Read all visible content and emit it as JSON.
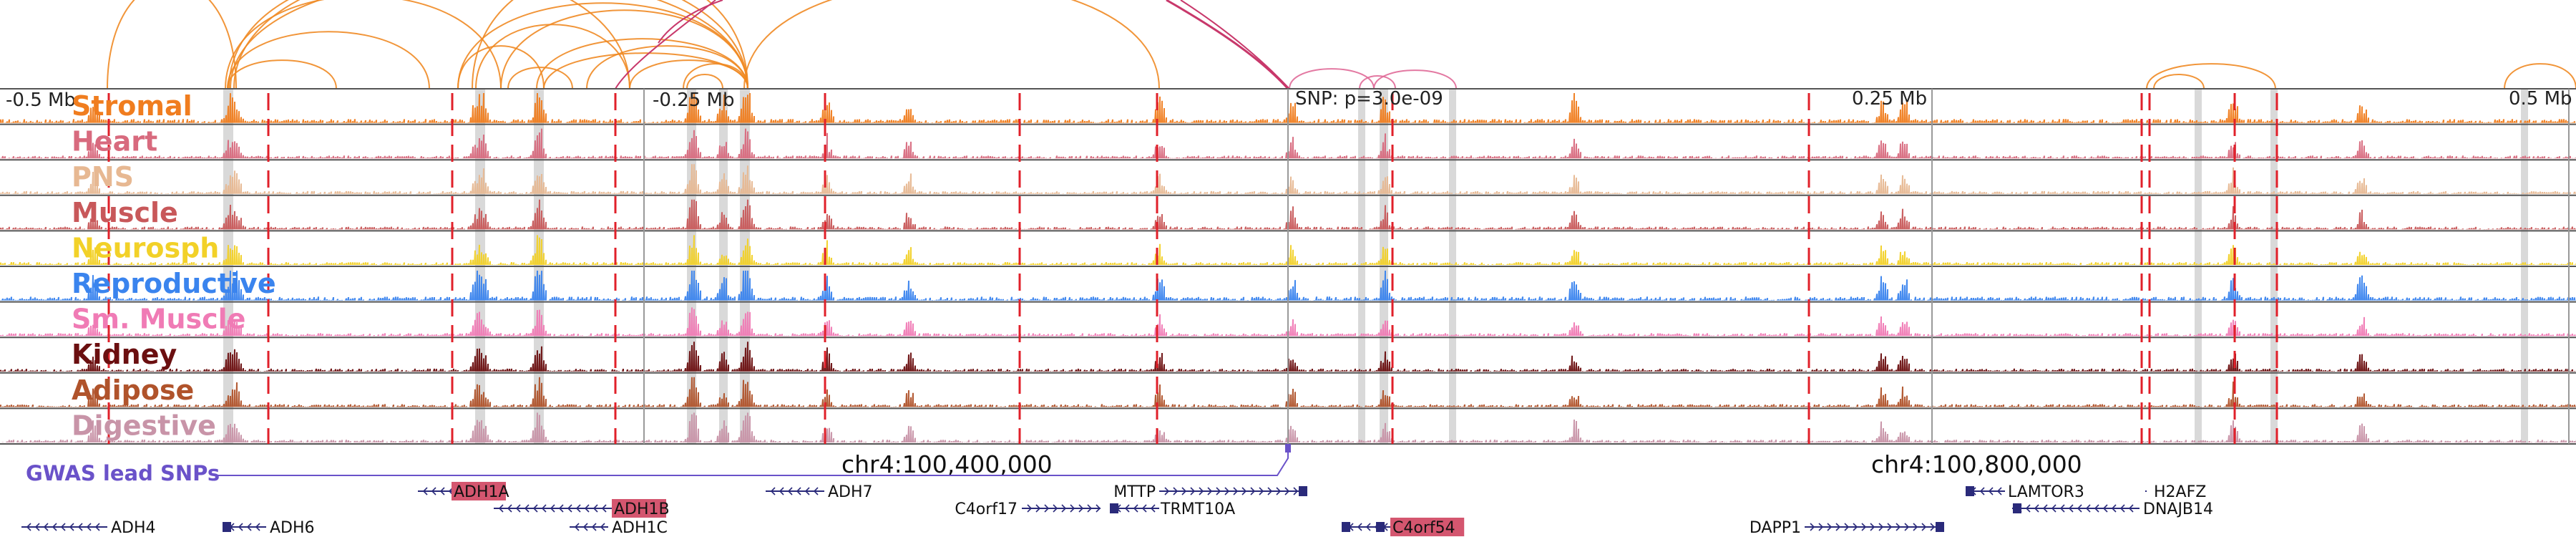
{
  "axis_labels": {
    "left": "-0.5 Mb",
    "mid_left": "-0.25 Mb",
    "snp": "SNP: p=3.0e-09",
    "mid_right": "0.25 Mb",
    "right": "0.5 Mb"
  },
  "coordinates": {
    "left": "chr4:100,400,000",
    "right": "chr4:100,800,000"
  },
  "gwas_label": "GWAS lead SNPs",
  "colors": {
    "arc_orange": "#f08a24",
    "arc_magenta": "#c8386b",
    "arc_pink": "#e06a98",
    "red_dash": "#e0202a",
    "gwas": "#6a52c9",
    "gene_line": "#2a2a7a",
    "highlight_gene_bg": "#d4566f"
  },
  "tracks": [
    {
      "name": "Stromal",
      "color": "#f07d1f"
    },
    {
      "name": "Heart",
      "color": "#d86a7e"
    },
    {
      "name": "PNS",
      "color": "#e7b892"
    },
    {
      "name": "Muscle",
      "color": "#c8585a"
    },
    {
      "name": "Neurosph",
      "color": "#f2d128"
    },
    {
      "name": "Reproductive",
      "color": "#3a84ee"
    },
    {
      "name": "Sm. Muscle",
      "color": "#f07bb5"
    },
    {
      "name": "Kidney",
      "color": "#6b0f10"
    },
    {
      "name": "Adipose",
      "color": "#b0532b"
    },
    {
      "name": "Digestive",
      "color": "#c894a8"
    }
  ],
  "genes": [
    {
      "name": "ADH1A",
      "highlight": true
    },
    {
      "name": "ADH1B",
      "highlight": true
    },
    {
      "name": "ADH7",
      "highlight": false
    },
    {
      "name": "MTTP",
      "highlight": false
    },
    {
      "name": "C4orf17",
      "highlight": false
    },
    {
      "name": "TRMT10A",
      "highlight": false
    },
    {
      "name": "ADH4",
      "highlight": false
    },
    {
      "name": "ADH6",
      "highlight": false
    },
    {
      "name": "ADH1C",
      "highlight": false
    },
    {
      "name": "C4orf54",
      "highlight": true
    },
    {
      "name": "DAPP1",
      "highlight": false
    },
    {
      "name": "LAMTOR3",
      "highlight": false
    },
    {
      "name": "H2AFZ",
      "highlight": false
    },
    {
      "name": "DNAJB14",
      "highlight": false
    }
  ]
}
